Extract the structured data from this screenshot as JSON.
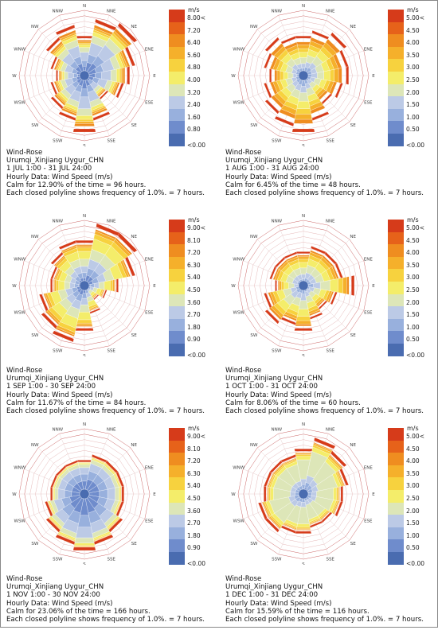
{
  "chart_data": [
    {
      "type": "wind-rose",
      "title": "Wind-Rose",
      "location": "Urumqi_Xinjiang Uygur_CHN",
      "period": "1 JUL 1:00 - 31 JUL 24:00",
      "data_type": "Hourly Data: Wind Speed (m/s)",
      "calm": "Calm for 12.90% of the time = 96 hours.",
      "note": "Each closed polyline shows frequency of 1.0%. = 7 hours.",
      "legend_unit": "m/s",
      "legend_labels": [
        "<0.00",
        "0.80",
        "1.60",
        "2.40",
        "3.20",
        "4.00",
        "4.80",
        "5.60",
        "6.40",
        "7.20",
        "8.00<"
      ],
      "directions": [
        "N",
        "NNE",
        "NE",
        "ENE",
        "E",
        "ESE",
        "SE",
        "SSE",
        "S",
        "SSW",
        "SW",
        "WSW",
        "W",
        "WNW",
        "NW",
        "NNW"
      ],
      "frequency_rings": 12,
      "bin_fraction": [
        0.25,
        0.4,
        0.62,
        0.75,
        0.82,
        0.86,
        0.9,
        0.95
      ],
      "sector_lengths": [
        7,
        10,
        11,
        9,
        8,
        7,
        5,
        8,
        10,
        8,
        7,
        6,
        5,
        6,
        8,
        9
      ]
    },
    {
      "type": "wind-rose",
      "title": "Wind-Rose",
      "location": "Urumqi_Xinjiang Uygur_CHN",
      "period": "1 AUG 1:00 - 31 AUG 24:00",
      "data_type": "Hourly Data: Wind Speed (m/s)",
      "calm": "Calm for 6.45% of the time = 48 hours.",
      "note": "Each closed polyline shows frequency of 1.0%. = 7 hours.",
      "legend_unit": "m/s",
      "legend_labels": [
        "<0.00",
        "0.50",
        "1.00",
        "1.50",
        "2.00",
        "2.50",
        "3.00",
        "3.50",
        "4.00",
        "4.50",
        "5.00<"
      ],
      "directions": [
        "N",
        "NNE",
        "NE",
        "ENE",
        "E",
        "ESE",
        "SE",
        "SSE",
        "S",
        "SSW",
        "SW",
        "WSW",
        "W",
        "WNW",
        "NW",
        "NNW"
      ],
      "frequency_rings": 12,
      "bin_fraction": [
        0.1,
        0.2,
        0.32,
        0.48,
        0.62,
        0.72,
        0.82,
        0.9
      ],
      "sector_lengths": [
        7,
        8,
        9,
        8,
        8,
        7,
        6,
        8,
        10,
        9,
        8,
        7,
        6,
        7,
        8,
        7
      ]
    },
    {
      "type": "wind-rose",
      "title": "Wind-Rose",
      "location": "Urumqi_Xinjiang Uygur_CHN",
      "period": "1 SEP 1:00 - 30 SEP 24:00",
      "data_type": "Hourly Data: Wind Speed (m/s)",
      "calm": "Calm for 11.67% of the time = 84 hours.",
      "note": "Each closed polyline shows frequency of 1.0%. = 7 hours.",
      "legend_unit": "m/s",
      "legend_labels": [
        "<0.00",
        "0.90",
        "1.80",
        "2.70",
        "3.60",
        "4.50",
        "5.40",
        "6.30",
        "7.20",
        "8.10",
        "9.00<"
      ],
      "directions": [
        "N",
        "NNE",
        "NE",
        "ENE",
        "E",
        "ESE",
        "SE",
        "SSE",
        "S",
        "SSW",
        "SW",
        "WSW",
        "W",
        "WNW",
        "NW",
        "NNW"
      ],
      "frequency_rings": 12,
      "bin_fraction": [
        0.18,
        0.3,
        0.45,
        0.62,
        0.8,
        0.88,
        0.93,
        0.96
      ],
      "sector_lengths": [
        8,
        11,
        11,
        9,
        6,
        4,
        3,
        5,
        8,
        10,
        9,
        8,
        6,
        6,
        7,
        8
      ]
    },
    {
      "type": "wind-rose",
      "title": "Wind-Rose",
      "location": "Urumqi_Xinjiang Uygur_CHN",
      "period": "1 OCT 1:00 - 31 OCT 24:00",
      "data_type": "Hourly Data: Wind Speed (m/s)",
      "calm": "Calm for 8.06% of the time = 60 hours.",
      "note": "Each closed polyline shows frequency of 1.0%. = 7 hours.",
      "legend_unit": "m/s",
      "legend_labels": [
        "<0.00",
        "0.50",
        "1.00",
        "1.50",
        "2.00",
        "2.50",
        "3.00",
        "3.50",
        "4.00",
        "4.50",
        "5.00<"
      ],
      "directions": [
        "N",
        "NNE",
        "NE",
        "ENE",
        "E",
        "ESE",
        "SE",
        "SSE",
        "S",
        "SSW",
        "SW",
        "WSW",
        "W",
        "WNW",
        "NW",
        "NNW"
      ],
      "frequency_rings": 12,
      "bin_fraction": [
        0.1,
        0.2,
        0.35,
        0.55,
        0.72,
        0.82,
        0.9,
        0.95
      ],
      "sector_lengths": [
        6,
        7,
        7,
        7,
        9,
        6,
        5,
        6,
        8,
        7,
        8,
        7,
        5,
        6,
        6,
        6
      ]
    },
    {
      "type": "wind-rose",
      "title": "Wind-Rose",
      "location": "Urumqi_Xinjiang Uygur_CHN",
      "period": "1 NOV 1:00 - 30 NOV 24:00",
      "data_type": "Hourly Data: Wind Speed (m/s)",
      "calm": "Calm for 23.06% of the time = 166 hours.",
      "note": "Each closed polyline shows frequency of 1.0%. = 7 hours.",
      "legend_unit": "m/s",
      "legend_labels": [
        "<0.00",
        "0.90",
        "1.80",
        "2.70",
        "3.60",
        "4.50",
        "5.40",
        "6.30",
        "7.20",
        "8.10",
        "9.00<"
      ],
      "directions": [
        "N",
        "NNE",
        "NE",
        "ENE",
        "E",
        "ESE",
        "SE",
        "SSE",
        "S",
        "SSW",
        "SW",
        "WSW",
        "W",
        "WNW",
        "NW",
        "NNW"
      ],
      "frequency_rings": 12,
      "bin_fraction": [
        0.4,
        0.62,
        0.82,
        0.92,
        0.96,
        0.98,
        0.99,
        1.0
      ],
      "sector_lengths": [
        6,
        7,
        7,
        7,
        7,
        7,
        8,
        9,
        10,
        9,
        8,
        7,
        6,
        6,
        6,
        6
      ]
    },
    {
      "type": "wind-rose",
      "title": "Wind-Rose",
      "location": "Urumqi_Xinjiang Uygur_CHN",
      "period": "1 DEC 1:00 - 31 DEC 24:00",
      "data_type": "Hourly Data: Wind Speed (m/s)",
      "calm": "Calm for 15.59% of the time = 116 hours.",
      "note": "Each closed polyline shows frequency of 1.0%. = 7 hours.",
      "legend_unit": "m/s",
      "legend_labels": [
        "<0.00",
        "0.50",
        "1.00",
        "1.50",
        "2.00",
        "2.50",
        "3.00",
        "3.50",
        "4.00",
        "4.50",
        "5.00<"
      ],
      "directions": [
        "N",
        "NNE",
        "NE",
        "ENE",
        "E",
        "ESE",
        "SE",
        "SSE",
        "S",
        "SSW",
        "SW",
        "WSW",
        "W",
        "WNW",
        "NW",
        "NNW"
      ],
      "frequency_rings": 12,
      "bin_fraction": [
        0.12,
        0.22,
        0.35,
        0.8,
        0.88,
        0.92,
        0.95,
        0.97
      ],
      "sector_lengths": [
        8,
        10,
        9,
        8,
        7,
        7,
        6,
        6,
        7,
        7,
        8,
        8,
        7,
        7,
        7,
        7
      ]
    }
  ],
  "palette": [
    "#4a6cb0",
    "#6f8ccc",
    "#98b0dd",
    "#bccae6",
    "#dde6b8",
    "#f4ed6a",
    "#f7d23e",
    "#f5b02b",
    "#ef8d20",
    "#e6621a",
    "#d63b1a"
  ]
}
